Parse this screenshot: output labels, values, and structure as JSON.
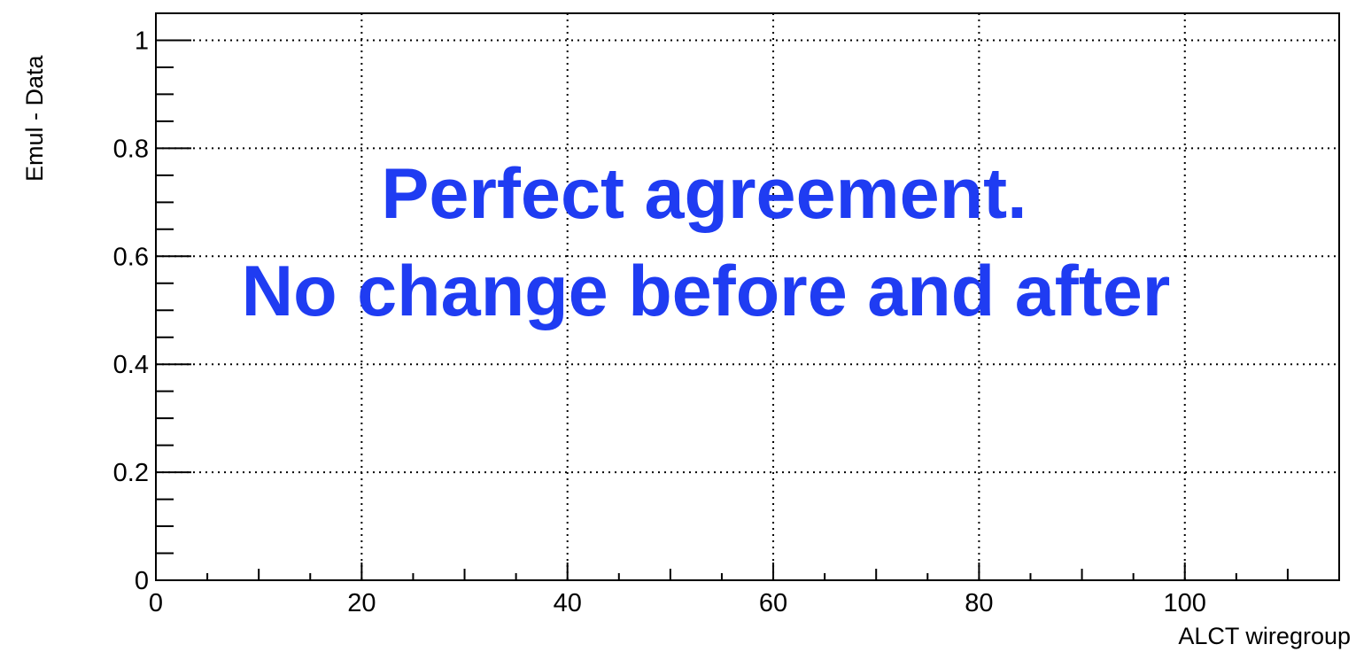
{
  "chart_data": {
    "type": "line",
    "title": "",
    "xlabel": "ALCT wiregroup",
    "ylabel": "Emul - Data",
    "xlim": [
      0,
      115
    ],
    "ylim": [
      0,
      1.05
    ],
    "x_ticks": [
      "0",
      "20",
      "40",
      "60",
      "80",
      "100"
    ],
    "y_ticks": [
      "0",
      "0.2",
      "0.4",
      "0.6",
      "0.8",
      "1"
    ],
    "grid": true,
    "grid_style": "dotted",
    "series": [],
    "annotation": {
      "line1": "Perfect agreement.",
      "line2": "No change before and after",
      "color": "#1f3cf2"
    }
  }
}
